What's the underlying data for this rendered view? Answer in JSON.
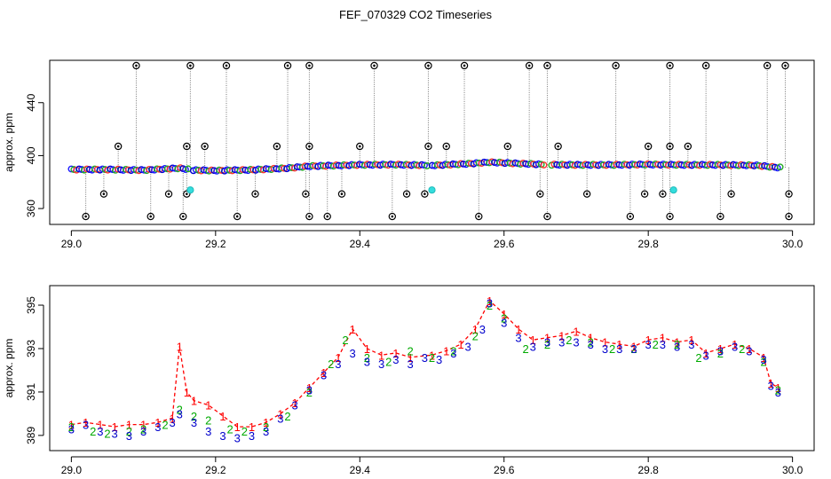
{
  "title": "FEF_070329  CO2 Timeseries",
  "chart_data": [
    {
      "type": "scatter",
      "ylabel": "approx. ppm",
      "xlim": [
        28.97,
        30.03
      ],
      "ylim": [
        348,
        472
      ],
      "xticks": [
        29.0,
        29.2,
        29.4,
        29.6,
        29.8,
        30.0
      ],
      "xtick_labels": [
        "29.0",
        "29.2",
        "29.4",
        "29.6",
        "29.8",
        "30.0"
      ],
      "yticks": [
        360,
        400,
        440
      ],
      "ytick_labels": [
        "360",
        "400",
        "440"
      ],
      "grid": false,
      "baseline": [
        [
          29.0,
          389.5
        ],
        [
          29.05,
          389.5
        ],
        [
          29.1,
          389.0
        ],
        [
          29.15,
          390.5
        ],
        [
          29.17,
          389.0
        ],
        [
          29.2,
          388.7
        ],
        [
          29.25,
          389.2
        ],
        [
          29.3,
          390.5
        ],
        [
          29.33,
          392.0
        ],
        [
          29.4,
          393.0
        ],
        [
          29.45,
          393.2
        ],
        [
          29.5,
          392.6
        ],
        [
          29.55,
          393.8
        ],
        [
          29.58,
          395.0
        ],
        [
          29.62,
          394.0
        ],
        [
          29.66,
          393.2
        ],
        [
          29.7,
          393.0
        ],
        [
          29.75,
          393.0
        ],
        [
          29.8,
          393.3
        ],
        [
          29.85,
          393.0
        ],
        [
          29.9,
          393.0
        ],
        [
          29.95,
          392.6
        ],
        [
          29.98,
          391.0
        ]
      ],
      "spikes_high": [
        29.09,
        29.165,
        29.215,
        29.3,
        29.33,
        29.42,
        29.495,
        29.545,
        29.635,
        29.66,
        29.755,
        29.83,
        29.88,
        29.965,
        29.99
      ],
      "spikes_mid_high": [
        29.065,
        29.16,
        29.185,
        29.285,
        29.33,
        29.4,
        29.495,
        29.52,
        29.605,
        29.675,
        29.8,
        29.83,
        29.855
      ],
      "spikes_mid_low": [
        29.045,
        29.135,
        29.16,
        29.255,
        29.325,
        29.375,
        29.465,
        29.49,
        29.65,
        29.715,
        29.795,
        29.82,
        29.915,
        29.995
      ],
      "spikes_low": [
        29.02,
        29.11,
        29.155,
        29.23,
        29.33,
        29.355,
        29.445,
        29.565,
        29.66,
        29.775,
        29.83,
        29.9,
        29.995
      ],
      "cyan_points": [
        [
          29.165,
          374
        ],
        [
          29.5,
          374
        ],
        [
          29.835,
          374
        ]
      ]
    },
    {
      "type": "line",
      "ylabel": "approx. ppm",
      "xlim": [
        28.97,
        30.03
      ],
      "ylim": [
        388.3,
        395.9
      ],
      "xticks": [
        29.0,
        29.2,
        29.4,
        29.6,
        29.8,
        30.0
      ],
      "xtick_labels": [
        "29.0",
        "29.2",
        "29.4",
        "29.6",
        "29.8",
        "30.0"
      ],
      "yticks": [
        389,
        391,
        393,
        395
      ],
      "ytick_labels": [
        "389",
        "391",
        "393",
        "395"
      ],
      "grid": false,
      "legend": null,
      "series": [
        {
          "marker": "1",
          "color": "#ff0000",
          "line": "dashed",
          "points": [
            [
              29.0,
              389.5
            ],
            [
              29.02,
              389.6
            ],
            [
              29.04,
              389.5
            ],
            [
              29.06,
              389.4
            ],
            [
              29.08,
              389.5
            ],
            [
              29.1,
              389.5
            ],
            [
              29.12,
              389.6
            ],
            [
              29.14,
              389.8
            ],
            [
              29.15,
              393.1
            ],
            [
              29.16,
              391.0
            ],
            [
              29.17,
              390.6
            ],
            [
              29.19,
              390.4
            ],
            [
              29.21,
              389.9
            ],
            [
              29.23,
              389.4
            ],
            [
              29.25,
              389.4
            ],
            [
              29.27,
              389.6
            ],
            [
              29.29,
              390.0
            ],
            [
              29.31,
              390.5
            ],
            [
              29.33,
              391.2
            ],
            [
              29.35,
              391.9
            ],
            [
              29.37,
              392.6
            ],
            [
              29.39,
              393.9
            ],
            [
              29.41,
              393.0
            ],
            [
              29.43,
              392.7
            ],
            [
              29.45,
              392.8
            ],
            [
              29.47,
              392.6
            ],
            [
              29.5,
              392.7
            ],
            [
              29.52,
              392.9
            ],
            [
              29.54,
              393.2
            ],
            [
              29.56,
              393.9
            ],
            [
              29.58,
              395.2
            ],
            [
              29.6,
              394.6
            ],
            [
              29.62,
              393.9
            ],
            [
              29.64,
              393.4
            ],
            [
              29.66,
              393.5
            ],
            [
              29.68,
              393.6
            ],
            [
              29.7,
              393.8
            ],
            [
              29.72,
              393.5
            ],
            [
              29.74,
              393.3
            ],
            [
              29.76,
              393.2
            ],
            [
              29.78,
              393.1
            ],
            [
              29.8,
              393.4
            ],
            [
              29.82,
              393.5
            ],
            [
              29.84,
              393.3
            ],
            [
              29.86,
              393.4
            ],
            [
              29.88,
              392.8
            ],
            [
              29.9,
              393.0
            ],
            [
              29.92,
              393.2
            ],
            [
              29.94,
              393.0
            ],
            [
              29.96,
              392.6
            ],
            [
              29.97,
              391.4
            ],
            [
              29.98,
              391.2
            ]
          ]
        },
        {
          "marker": "2",
          "color": "#00aa00",
          "line": "none",
          "points": [
            [
              29.0,
              389.4
            ],
            [
              29.03,
              389.2
            ],
            [
              29.05,
              389.1
            ],
            [
              29.08,
              389.2
            ],
            [
              29.1,
              389.3
            ],
            [
              29.13,
              389.5
            ],
            [
              29.15,
              390.2
            ],
            [
              29.17,
              389.9
            ],
            [
              29.19,
              389.7
            ],
            [
              29.22,
              389.3
            ],
            [
              29.24,
              389.2
            ],
            [
              29.27,
              389.4
            ],
            [
              29.3,
              389.9
            ],
            [
              29.33,
              391.0
            ],
            [
              29.36,
              392.3
            ],
            [
              29.38,
              393.4
            ],
            [
              29.41,
              392.6
            ],
            [
              29.44,
              392.4
            ],
            [
              29.47,
              392.9
            ],
            [
              29.5,
              392.6
            ],
            [
              29.53,
              392.9
            ],
            [
              29.56,
              393.6
            ],
            [
              29.58,
              395.0
            ],
            [
              29.6,
              394.4
            ],
            [
              29.63,
              393.0
            ],
            [
              29.66,
              393.2
            ],
            [
              29.69,
              393.4
            ],
            [
              29.72,
              393.3
            ],
            [
              29.75,
              393.0
            ],
            [
              29.78,
              393.0
            ],
            [
              29.81,
              393.2
            ],
            [
              29.84,
              393.2
            ],
            [
              29.87,
              392.6
            ],
            [
              29.9,
              392.8
            ],
            [
              29.93,
              393.0
            ],
            [
              29.96,
              392.4
            ],
            [
              29.98,
              391.1
            ]
          ]
        },
        {
          "marker": "3",
          "color": "#0000cc",
          "line": "none",
          "points": [
            [
              29.0,
              389.3
            ],
            [
              29.02,
              389.5
            ],
            [
              29.04,
              389.2
            ],
            [
              29.06,
              389.1
            ],
            [
              29.08,
              389.0
            ],
            [
              29.1,
              389.2
            ],
            [
              29.12,
              389.4
            ],
            [
              29.14,
              389.6
            ],
            [
              29.15,
              390.0
            ],
            [
              29.17,
              389.6
            ],
            [
              29.19,
              389.2
            ],
            [
              29.21,
              389.0
            ],
            [
              29.23,
              388.9
            ],
            [
              29.25,
              389.0
            ],
            [
              29.27,
              389.2
            ],
            [
              29.29,
              389.8
            ],
            [
              29.31,
              390.4
            ],
            [
              29.33,
              391.1
            ],
            [
              29.35,
              391.8
            ],
            [
              29.37,
              392.3
            ],
            [
              29.39,
              392.8
            ],
            [
              29.41,
              392.4
            ],
            [
              29.43,
              392.3
            ],
            [
              29.45,
              392.5
            ],
            [
              29.47,
              392.3
            ],
            [
              29.49,
              392.6
            ],
            [
              29.51,
              392.5
            ],
            [
              29.53,
              392.8
            ],
            [
              29.55,
              393.1
            ],
            [
              29.57,
              393.9
            ],
            [
              29.58,
              395.1
            ],
            [
              29.6,
              394.2
            ],
            [
              29.62,
              393.5
            ],
            [
              29.64,
              393.1
            ],
            [
              29.66,
              393.3
            ],
            [
              29.68,
              393.3
            ],
            [
              29.7,
              393.3
            ],
            [
              29.72,
              393.2
            ],
            [
              29.74,
              393.0
            ],
            [
              29.76,
              393.0
            ],
            [
              29.78,
              393.0
            ],
            [
              29.8,
              393.2
            ],
            [
              29.82,
              393.2
            ],
            [
              29.84,
              393.1
            ],
            [
              29.86,
              393.2
            ],
            [
              29.88,
              392.7
            ],
            [
              29.9,
              392.9
            ],
            [
              29.92,
              393.1
            ],
            [
              29.94,
              392.9
            ],
            [
              29.96,
              392.5
            ],
            [
              29.97,
              391.3
            ],
            [
              29.98,
              391.0
            ]
          ]
        }
      ]
    }
  ]
}
